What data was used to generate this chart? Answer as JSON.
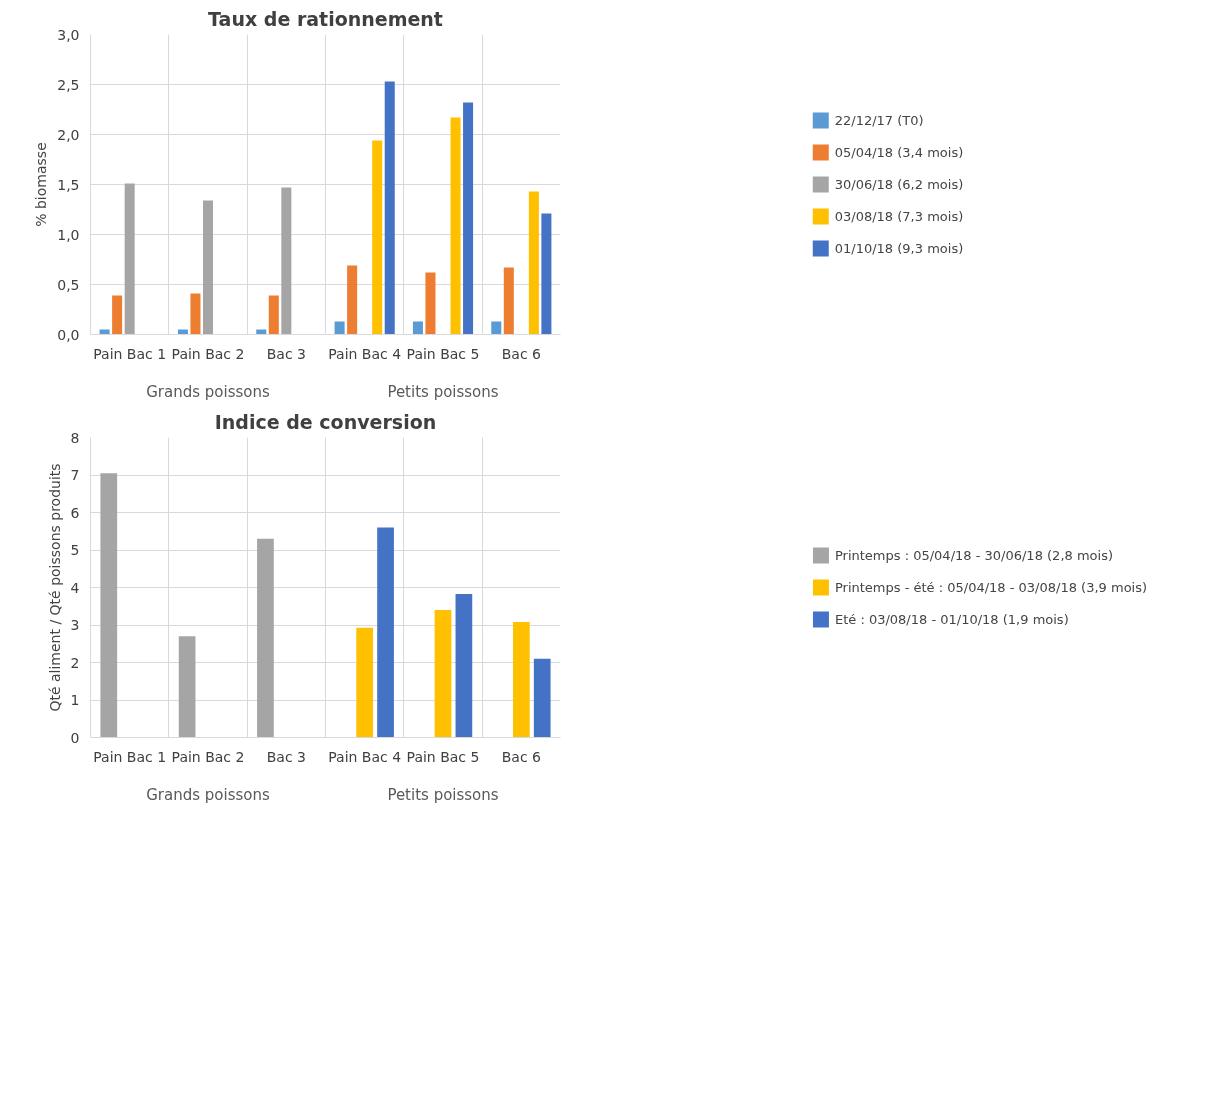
{
  "chart_data": [
    {
      "type": "bar",
      "title": "Taux de rationnement",
      "ylabel": "% biomasse",
      "categories": [
        "Pain Bac 1",
        "Pain Bac 2",
        "Bac 3",
        "Pain Bac 4",
        "Pain Bac 5",
        "Bac 6"
      ],
      "series": [
        {
          "name": "22/12/17 (T0)",
          "color": "#5b9bd5",
          "values": [
            0.05,
            0.05,
            0.05,
            0.13,
            0.13,
            0.13
          ]
        },
        {
          "name": "05/04/18 (3,4 mois)",
          "color": "#ed7d31",
          "values": [
            0.39,
            0.41,
            0.39,
            0.69,
            0.62,
            0.67
          ]
        },
        {
          "name": "30/06/18 (6,2 mois)",
          "color": "#a5a5a5",
          "values": [
            1.51,
            1.34,
            1.47,
            null,
            null,
            null
          ]
        },
        {
          "name": "03/08/18 (7,3 mois)",
          "color": "#ffc000",
          "values": [
            null,
            null,
            null,
            1.94,
            2.17,
            1.43
          ]
        },
        {
          "name": "01/10/18 (9,3 mois)",
          "color": "#4472c4",
          "values": [
            null,
            null,
            null,
            2.53,
            2.32,
            1.21
          ]
        }
      ],
      "ylim": [
        0,
        3
      ],
      "yticks": [
        {
          "value": 0,
          "label": "0,0"
        },
        {
          "value": 0.5,
          "label": "0,5"
        },
        {
          "value": 1,
          "label": "1,0"
        },
        {
          "value": 1.5,
          "label": "1,5"
        },
        {
          "value": 2,
          "label": "2,0"
        },
        {
          "value": 2.5,
          "label": "2,5"
        },
        {
          "value": 3,
          "label": "3,0"
        }
      ],
      "grid": true,
      "legend": "right",
      "annotations": [
        "Grands poissons",
        "Petits poissons"
      ]
    },
    {
      "type": "bar",
      "title": "Indice de conversion",
      "ylabel": "Qté aliment / Qté poissons produits",
      "categories": [
        "Pain Bac 1",
        "Pain Bac 2",
        "Bac 3",
        "Pain Bac 4",
        "Pain Bac 5",
        "Bac 6"
      ],
      "series": [
        {
          "name": "Printemps : 05/04/18 - 30/06/18 (2,8 mois)",
          "color": "#a5a5a5",
          "values": [
            7.05,
            2.7,
            5.3,
            null,
            null,
            null
          ]
        },
        {
          "name": "Printemps - été : 05/04/18 - 03/08/18 (3,9 mois)",
          "color": "#ffc000",
          "values": [
            null,
            null,
            null,
            2.93,
            3.4,
            3.08
          ]
        },
        {
          "name": "Eté : 03/08/18 - 01/10/18 (1,9 mois)",
          "color": "#4472c4",
          "values": [
            null,
            null,
            null,
            5.6,
            3.83,
            2.1
          ]
        }
      ],
      "ylim": [
        0,
        8
      ],
      "yticks": [
        0,
        1,
        2,
        3,
        4,
        5,
        6,
        7,
        8
      ],
      "grid": true,
      "legend": "right",
      "annotations": [
        "Grands poissons",
        "Petits poissons"
      ]
    }
  ]
}
